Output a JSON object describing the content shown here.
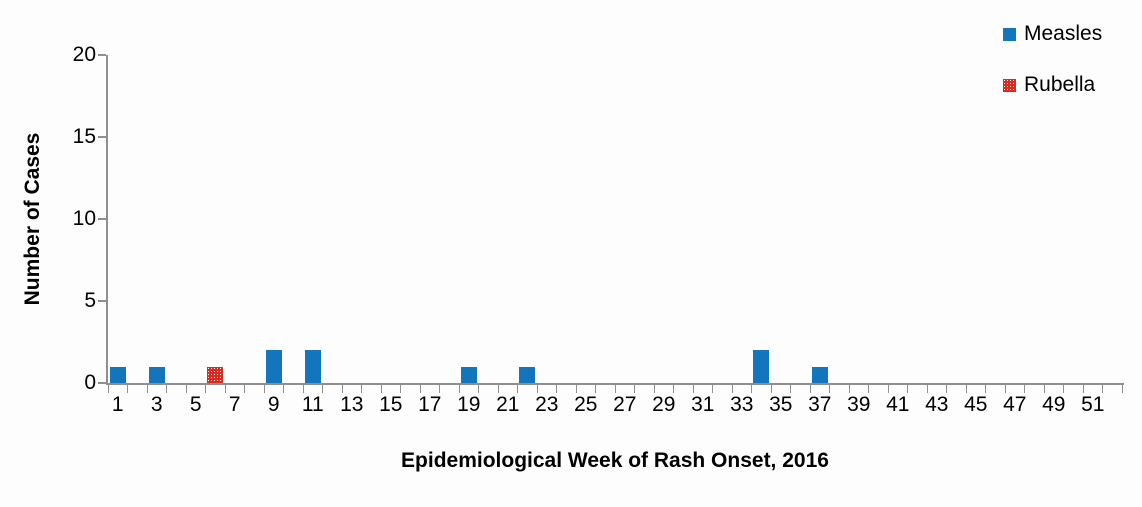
{
  "chart_data": {
    "type": "bar",
    "title": "",
    "xlabel": "Epidemiological Week of Rash Onset, 2016",
    "ylabel": "Number of Cases",
    "x_axis": {
      "num_weeks": 52,
      "tick_labels": [
        1,
        3,
        5,
        7,
        9,
        11,
        13,
        15,
        17,
        19,
        21,
        23,
        25,
        27,
        29,
        31,
        33,
        35,
        37,
        39,
        41,
        43,
        45,
        47,
        49,
        51
      ]
    },
    "y_axis": {
      "min": 0,
      "max": 20,
      "ticks": [
        0,
        5,
        10,
        15,
        20
      ]
    },
    "grid": false,
    "legend_position": "top-right",
    "colors": {
      "measles_blue": "#1375BC",
      "rubella_red": "#D92B1E",
      "axis_gray": "#8F8F8F"
    },
    "series": [
      {
        "name": "Measles",
        "color": "#1375BC",
        "fill": "solid",
        "points": [
          {
            "week": 1,
            "cases": 1
          },
          {
            "week": 3,
            "cases": 1
          },
          {
            "week": 9,
            "cases": 2
          },
          {
            "week": 11,
            "cases": 2
          },
          {
            "week": 19,
            "cases": 1
          },
          {
            "week": 22,
            "cases": 1
          },
          {
            "week": 34,
            "cases": 2
          },
          {
            "week": 37,
            "cases": 1
          }
        ]
      },
      {
        "name": "Rubella",
        "color": "#D92B1E",
        "fill": "dotted",
        "points": [
          {
            "week": 6,
            "cases": 1
          }
        ]
      }
    ]
  }
}
